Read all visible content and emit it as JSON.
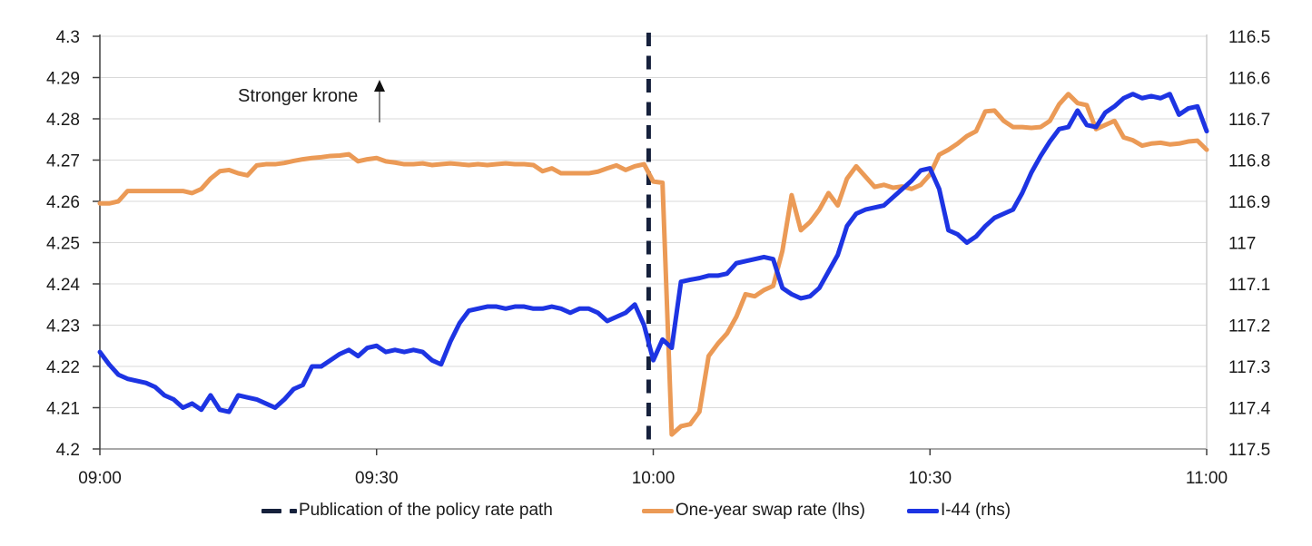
{
  "chart_data": {
    "type": "line",
    "title": "",
    "dual_axis": true,
    "x": {
      "start_label": "09:00",
      "end_label": "11:00",
      "step_minutes": 1,
      "count": 121,
      "tick_minutes": [
        0,
        30,
        60,
        90,
        120
      ],
      "tick_labels": [
        "09:00",
        "09:30",
        "10:00",
        "10:30",
        "11:00"
      ]
    },
    "left_axis": {
      "min": 4.2,
      "max": 4.3,
      "tick_values": [
        4.3,
        4.29,
        4.28,
        4.27,
        4.26,
        4.25,
        4.24,
        4.23,
        4.22,
        4.21,
        4.2
      ],
      "tick_labels": [
        "4.3",
        "4.29",
        "4.28",
        "4.27",
        "4.26",
        "4.25",
        "4.24",
        "4.23",
        "4.22",
        "4.21",
        "4.2"
      ]
    },
    "right_axis": {
      "min": 116.5,
      "max": 117.5,
      "inverted_down": true,
      "tick_values": [
        116.5,
        116.6,
        116.7,
        116.8,
        116.9,
        117,
        117.1,
        117.2,
        117.3,
        117.4,
        117.5
      ],
      "tick_labels": [
        "116.5",
        "116.6",
        "116.7",
        "116.8",
        "116.9",
        "117",
        "117.1",
        "117.2",
        "117.3",
        "117.4",
        "117.5"
      ]
    },
    "annotation": {
      "text": "Stronger krone",
      "icon": "up-arrow"
    },
    "event_line": {
      "label": "Publication of the policy rate path",
      "minute": 59.5,
      "style": "dashed",
      "color": "#16213C"
    },
    "grid": true,
    "legend_position": "bottom",
    "series": [
      {
        "name": "One-year swap rate (lhs)",
        "axis": "left",
        "color": "#EB9A56",
        "values": [
          4.2595,
          4.2595,
          4.26,
          4.2625,
          4.2625,
          4.2625,
          4.2625,
          4.2625,
          4.2625,
          4.2625,
          4.262,
          4.263,
          4.2655,
          4.2673,
          4.2676,
          4.2668,
          4.2663,
          4.2687,
          4.269,
          4.269,
          4.2693,
          4.2698,
          4.2702,
          4.2705,
          4.2707,
          4.271,
          4.2711,
          4.2714,
          4.2697,
          4.2702,
          4.2705,
          4.2697,
          4.2694,
          4.269,
          4.269,
          4.2692,
          4.2688,
          4.269,
          4.2692,
          4.269,
          4.2688,
          4.269,
          4.2688,
          4.269,
          4.2692,
          4.269,
          4.269,
          4.2688,
          4.2673,
          4.268,
          4.2668,
          4.2668,
          4.2668,
          4.2668,
          4.2672,
          4.268,
          4.2687,
          4.2676,
          4.2685,
          4.269,
          4.2648,
          4.2645,
          4.2035,
          4.2055,
          4.206,
          4.209,
          4.2225,
          4.2255,
          4.228,
          4.232,
          4.2375,
          4.237,
          4.2385,
          4.2395,
          4.248,
          4.2615,
          4.253,
          4.255,
          4.258,
          4.262,
          4.259,
          4.2655,
          4.2685,
          4.266,
          4.2635,
          4.264,
          4.2633,
          4.2636,
          4.263,
          4.264,
          4.2665,
          4.2713,
          4.2725,
          4.274,
          4.2758,
          4.277,
          4.2818,
          4.282,
          4.2795,
          4.278,
          4.278,
          4.2778,
          4.278,
          4.2795,
          4.2835,
          4.286,
          4.2838,
          4.2833,
          4.2775,
          4.2785,
          4.2795,
          4.2755,
          4.2748,
          4.2735,
          4.274,
          4.2742,
          4.2738,
          4.274,
          4.2745,
          4.2747,
          4.2725
        ]
      },
      {
        "name": "I-44 (rhs)",
        "axis": "right",
        "color": "#1D34E3",
        "values": [
          117.265,
          117.295,
          117.32,
          117.33,
          117.335,
          117.34,
          117.35,
          117.37,
          117.38,
          117.4,
          117.39,
          117.405,
          117.37,
          117.405,
          117.41,
          117.37,
          117.375,
          117.38,
          117.39,
          117.4,
          117.38,
          117.355,
          117.345,
          117.3,
          117.3,
          117.285,
          117.27,
          117.26,
          117.275,
          117.255,
          117.25,
          117.265,
          117.26,
          117.265,
          117.26,
          117.265,
          117.285,
          117.295,
          117.24,
          117.195,
          117.165,
          117.16,
          117.155,
          117.155,
          117.16,
          117.155,
          117.155,
          117.16,
          117.16,
          117.155,
          117.16,
          117.17,
          117.16,
          117.16,
          117.17,
          117.19,
          117.18,
          117.17,
          117.15,
          117.2,
          117.285,
          117.235,
          117.255,
          117.095,
          117.09,
          117.086,
          117.08,
          117.08,
          117.075,
          117.05,
          117.045,
          117.04,
          117.035,
          117.04,
          117.11,
          117.125,
          117.135,
          117.13,
          117.11,
          117.07,
          117.03,
          116.96,
          116.93,
          116.92,
          116.915,
          116.91,
          116.89,
          116.87,
          116.85,
          116.825,
          116.82,
          116.87,
          116.97,
          116.98,
          117.0,
          116.985,
          116.96,
          116.94,
          116.93,
          116.92,
          116.88,
          116.83,
          116.79,
          116.755,
          116.725,
          116.72,
          116.68,
          116.715,
          116.72,
          116.685,
          116.67,
          116.65,
          116.64,
          116.65,
          116.645,
          116.65,
          116.64,
          116.69,
          116.675,
          116.67,
          116.73
        ]
      }
    ]
  },
  "colors": {
    "swap_line": "#EB9A56",
    "i44_line": "#1D34E3",
    "event_line": "#16213C",
    "grid": "#D9D9D9",
    "axis_left": "#3F3F3F",
    "axis_bottom": "#8C8C8C",
    "axis_right": "#C9C9C9",
    "tick": "#3F3F3F",
    "text": "#1A1A1A",
    "background": "#FFFFFF"
  }
}
